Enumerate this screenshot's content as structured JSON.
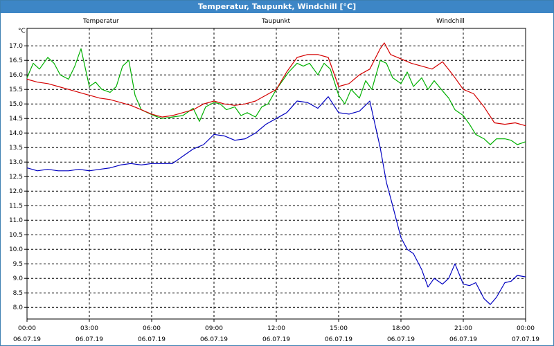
{
  "window": {
    "title": "Temperatur, Taupunkt, Windchill [°C]"
  },
  "chart_data": {
    "type": "line",
    "title": "Temperatur, Taupunkt, Windchill [°C]",
    "ylabel": "°C",
    "ylim": [
      7.6,
      17.6
    ],
    "yticks": [
      8.0,
      8.5,
      9.0,
      9.5,
      10.0,
      10.5,
      11.0,
      11.5,
      12.0,
      12.5,
      13.0,
      13.5,
      14.0,
      14.5,
      15.0,
      15.5,
      16.0,
      16.5,
      17.0
    ],
    "x_range_hours": [
      0,
      24
    ],
    "xticks": [
      {
        "time": "00:00",
        "date": "06.07.19"
      },
      {
        "time": "03:00",
        "date": "06.07.19"
      },
      {
        "time": "06:00",
        "date": "06.07.19"
      },
      {
        "time": "09:00",
        "date": "06.07.19"
      },
      {
        "time": "12:00",
        "date": "06.07.19"
      },
      {
        "time": "15:00",
        "date": "06.07.19"
      },
      {
        "time": "18:00",
        "date": "06.07.19"
      },
      {
        "time": "21:00",
        "date": "06.07.19"
      },
      {
        "time": "00:00",
        "date": "07.07.19"
      }
    ],
    "grid": true,
    "legend_position": "top",
    "colors": {
      "Temperatur": "#d40000",
      "Taupunkt": "#0000c0",
      "Windchill": "#00b000"
    },
    "series": [
      {
        "name": "Temperatur",
        "x": [
          0,
          0.5,
          1,
          1.5,
          2,
          2.5,
          3,
          3.5,
          4,
          4.5,
          5,
          5.5,
          6,
          6.5,
          7,
          7.5,
          8,
          8.5,
          9,
          9.5,
          10,
          10.5,
          11,
          11.5,
          12,
          12.5,
          13,
          13.5,
          14,
          14.5,
          15,
          15.5,
          16,
          16.5,
          17,
          17.2,
          17.5,
          18,
          18.5,
          19,
          19.5,
          20,
          20.5,
          21,
          21.5,
          22,
          22.5,
          23,
          23.5,
          24
        ],
        "values": [
          15.85,
          15.75,
          15.7,
          15.6,
          15.5,
          15.4,
          15.3,
          15.2,
          15.15,
          15.05,
          14.95,
          14.8,
          14.65,
          14.55,
          14.6,
          14.7,
          14.8,
          15.0,
          15.1,
          15.0,
          14.95,
          15.0,
          15.1,
          15.3,
          15.5,
          16.1,
          16.6,
          16.7,
          16.7,
          16.6,
          15.6,
          15.7,
          16.0,
          16.2,
          16.9,
          17.1,
          16.7,
          16.55,
          16.4,
          16.3,
          16.2,
          16.45,
          16.0,
          15.5,
          15.35,
          14.9,
          14.35,
          14.3,
          14.35,
          14.25
        ]
      },
      {
        "name": "Taupunkt",
        "x": [
          0,
          0.5,
          1,
          1.5,
          2,
          2.5,
          3,
          3.5,
          4,
          4.5,
          5,
          5.5,
          6,
          6.5,
          7,
          7.5,
          8,
          8.5,
          9,
          9.5,
          10,
          10.5,
          11,
          11.5,
          12,
          12.5,
          13,
          13.5,
          14,
          14.5,
          15,
          15.5,
          16,
          16.5,
          17,
          17.3,
          17.6,
          18,
          18.3,
          18.6,
          19,
          19.3,
          19.6,
          20,
          20.3,
          20.6,
          21,
          21.3,
          21.6,
          22,
          22.3,
          22.6,
          23,
          23.3,
          23.6,
          24
        ],
        "values": [
          12.8,
          12.7,
          12.75,
          12.7,
          12.7,
          12.75,
          12.7,
          12.75,
          12.8,
          12.9,
          12.95,
          12.9,
          12.95,
          12.95,
          12.95,
          13.2,
          13.45,
          13.6,
          13.95,
          13.9,
          13.75,
          13.8,
          14.0,
          14.3,
          14.5,
          14.7,
          15.1,
          15.05,
          14.85,
          15.25,
          14.7,
          14.65,
          14.75,
          15.1,
          13.5,
          12.3,
          11.5,
          10.4,
          10.0,
          9.85,
          9.3,
          8.7,
          9.0,
          8.8,
          9.0,
          9.5,
          8.8,
          8.75,
          8.85,
          8.3,
          8.1,
          8.35,
          8.85,
          8.9,
          9.1,
          9.05
        ]
      },
      {
        "name": "Windchill",
        "x": [
          0,
          0.3,
          0.6,
          1,
          1.3,
          1.6,
          2,
          2.3,
          2.6,
          3,
          3.3,
          3.6,
          4,
          4.3,
          4.6,
          4.9,
          5.2,
          5.5,
          5.8,
          6.1,
          6.5,
          7,
          7.5,
          8,
          8.3,
          8.6,
          9,
          9.3,
          9.6,
          10,
          10.3,
          10.6,
          11,
          11.3,
          11.6,
          12,
          12.3,
          12.6,
          13,
          13.3,
          13.6,
          14,
          14.3,
          14.6,
          15,
          15.3,
          15.6,
          16,
          16.3,
          16.6,
          17,
          17.3,
          17.6,
          18,
          18.3,
          18.6,
          19,
          19.3,
          19.6,
          20,
          20.3,
          20.6,
          21,
          21.3,
          21.6,
          22,
          22.3,
          22.6,
          23,
          23.3,
          23.6,
          24
        ],
        "values": [
          15.9,
          16.4,
          16.2,
          16.6,
          16.4,
          16.0,
          15.85,
          16.3,
          16.9,
          15.6,
          15.75,
          15.5,
          15.4,
          15.6,
          16.3,
          16.5,
          15.3,
          14.8,
          14.7,
          14.6,
          14.5,
          14.55,
          14.6,
          14.85,
          14.4,
          14.9,
          15.05,
          15.0,
          14.8,
          14.9,
          14.6,
          14.7,
          14.55,
          14.9,
          15.0,
          15.5,
          15.8,
          16.1,
          16.4,
          16.3,
          16.4,
          16.0,
          16.4,
          16.2,
          15.3,
          15.0,
          15.5,
          15.2,
          15.8,
          15.5,
          16.5,
          16.4,
          15.9,
          15.7,
          16.1,
          15.6,
          15.9,
          15.5,
          15.8,
          15.45,
          15.2,
          14.8,
          14.6,
          14.3,
          13.95,
          13.8,
          13.6,
          13.8,
          13.8,
          13.75,
          13.6,
          13.7
        ]
      }
    ]
  }
}
